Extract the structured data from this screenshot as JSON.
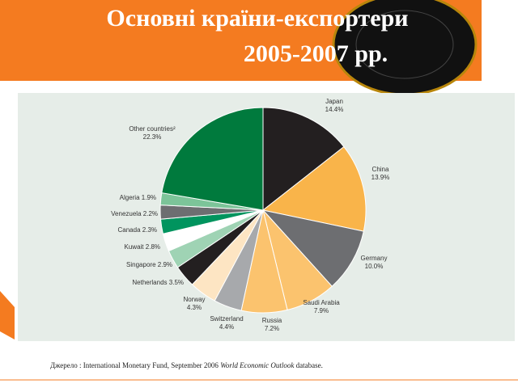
{
  "chart_data": {
    "type": "pie",
    "title": "Основні країни-експортери",
    "subtitle": "2005-2007 рр.",
    "categories": [
      "Japan",
      "China",
      "Germany",
      "Saudi Arabia",
      "Russia",
      "Switzerland",
      "Norway",
      "Netherlands",
      "Singapore",
      "Kuwait",
      "Canada",
      "Venezuela",
      "Algeria",
      "Other countries²"
    ],
    "values": [
      14.4,
      13.9,
      10.0,
      7.9,
      7.2,
      4.4,
      4.3,
      3.5,
      2.9,
      2.8,
      2.3,
      2.2,
      1.9,
      22.3
    ],
    "value_labels": [
      "14.4%",
      "13.9%",
      "10.0%",
      "7.9%",
      "7.2%",
      "4.4%",
      "4.3%",
      "3.5%",
      "2.9%",
      "2.8%",
      "2.3%",
      "2.2%",
      "1.9%",
      "22.3%"
    ],
    "colors": [
      "#231f20",
      "#f9b44a",
      "#6d6e71",
      "#fbc36e",
      "#fbc36e",
      "#a7a9ac",
      "#fde5c3",
      "#231f20",
      "#9fd3b4",
      "#ffffff",
      "#00945e",
      "#6d6e71",
      "#7cc499",
      "#007a3d"
    ],
    "source": [
      "Джерело : International Monetary Fund, September 2006 ",
      "World Economic Outlook",
      " database."
    ]
  }
}
